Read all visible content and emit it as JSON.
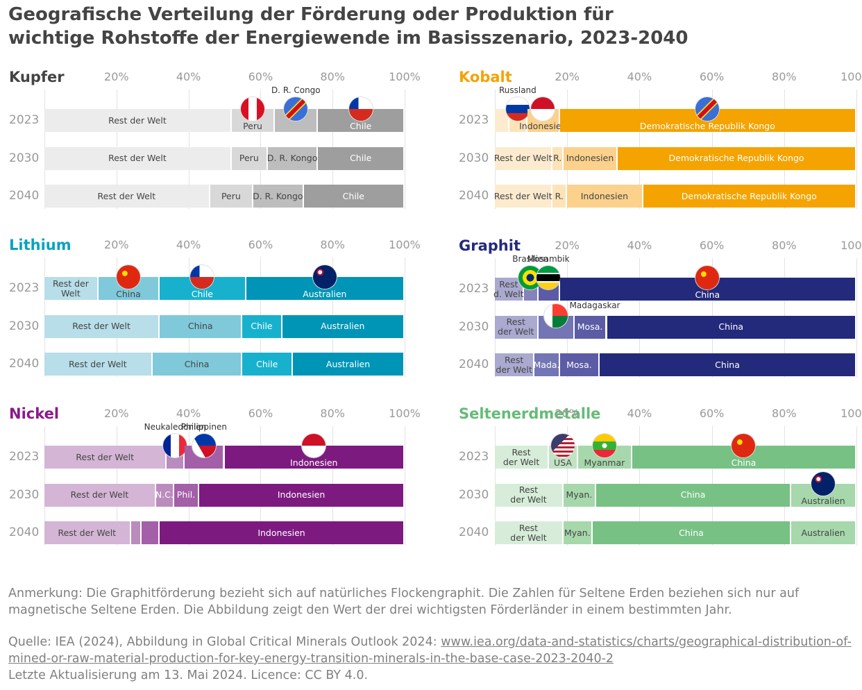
{
  "title": "Geografische Verteilung der Förderung oder Produktion für wichtige Rohstoffe der Energiewende im Basisszenario, 2023-2040",
  "chart_data": [
    {
      "type": "bar",
      "orientation": "horizontal",
      "stacked": true,
      "title": "Kupfer",
      "title_color": "#444444",
      "categories": [
        "2023",
        "2030",
        "2040"
      ],
      "xlim": [
        0,
        100
      ],
      "xticks": [
        {
          "value": 20,
          "label": "20%"
        },
        {
          "value": 40,
          "label": "40%"
        },
        {
          "value": 60,
          "label": "60%"
        },
        {
          "value": 80,
          "label": "80%"
        },
        {
          "value": 100,
          "label": "100%"
        }
      ],
      "series": [
        {
          "color": "#ececec",
          "values": [
            52,
            52,
            46
          ],
          "labels": [
            "Rest der Welt",
            "Rest der Welt",
            "Rest der Welt"
          ]
        },
        {
          "color": "#d8d8d8",
          "values": [
            12,
            10,
            12
          ],
          "labels": [
            "Peru",
            "Peru",
            "Peru"
          ]
        },
        {
          "name": "D. R. Congo",
          "color": "#bdbdbd",
          "values": [
            12,
            14,
            14
          ],
          "labels": [
            null,
            "D. R. Kongo",
            "D. R. Kongo"
          ]
        },
        {
          "color": "#9e9e9e",
          "values": [
            24,
            24,
            28
          ],
          "labels": [
            "Chile",
            "Chile",
            "Chile"
          ]
        }
      ]
    },
    {
      "type": "bar",
      "orientation": "horizontal",
      "stacked": true,
      "title": "Kobalt",
      "title_color": "#f5a300",
      "categories": [
        "2023",
        "2030",
        "2040"
      ],
      "xlim": [
        0,
        100
      ],
      "xticks": [
        {
          "value": 20,
          "label": "20%"
        },
        {
          "value": 40,
          "label": "40%"
        },
        {
          "value": 60,
          "label": "60%"
        },
        {
          "value": 80,
          "label": "80%"
        },
        {
          "value": 100,
          "label": "100%"
        }
      ],
      "series": [
        {
          "color": "#fdebcf",
          "values": [
            4,
            16,
            16
          ],
          "labels": [
            null,
            "Rest der Welt",
            "Rest der Welt"
          ]
        },
        {
          "name": "Russland",
          "color": "#fde3b8",
          "values": [
            5,
            3,
            4
          ],
          "labels": [
            null,
            "R.",
            "R."
          ]
        },
        {
          "color": "#fbd18c",
          "values": [
            9,
            15,
            21
          ],
          "labels": [
            "Indonesien",
            "Indonesien",
            "Indonesien"
          ]
        },
        {
          "color": "#f5a300",
          "values": [
            82,
            66,
            59
          ],
          "labels": [
            "Demokratische Republik Kongo",
            "Demokratische Republik Kongo",
            "Demokratische Republik Kongo"
          ]
        }
      ]
    },
    {
      "type": "bar",
      "orientation": "horizontal",
      "stacked": true,
      "title": "Lithium",
      "title_color": "#0aa2c0",
      "categories": [
        "2023",
        "2030",
        "2040"
      ],
      "xlim": [
        0,
        100
      ],
      "xticks": [
        {
          "value": 20,
          "label": "20%"
        },
        {
          "value": 40,
          "label": "40%"
        },
        {
          "value": 60,
          "label": "60%"
        },
        {
          "value": 80,
          "label": "80%"
        },
        {
          "value": 100,
          "label": "100%"
        }
      ],
      "series": [
        {
          "color": "#b7dee9",
          "values": [
            15,
            32,
            30
          ],
          "labels": [
            "Rest der\nWelt",
            "Rest der Welt",
            "Rest der Welt"
          ]
        },
        {
          "color": "#7fc9db",
          "values": [
            17,
            23,
            25
          ],
          "labels": [
            "China",
            "China",
            "China"
          ]
        },
        {
          "color": "#17b1cd",
          "values": [
            24,
            11,
            14
          ],
          "labels": [
            "Chile",
            "Chile",
            "Chile"
          ]
        },
        {
          "color": "#0095b6",
          "values": [
            44,
            34,
            31
          ],
          "labels": [
            "Australien",
            "Australien",
            "Australien"
          ]
        }
      ]
    },
    {
      "type": "bar",
      "orientation": "horizontal",
      "stacked": true,
      "title": "Graphit",
      "title_color": "#232a7b",
      "categories": [
        "2023",
        "2030",
        "2040"
      ],
      "xlim": [
        0,
        100
      ],
      "xticks": [
        {
          "value": 20,
          "label": "20%"
        },
        {
          "value": 40,
          "label": "40%"
        },
        {
          "value": 60,
          "label": "60%"
        },
        {
          "value": 80,
          "label": "80%"
        },
        {
          "value": 100,
          "label": "100%"
        }
      ],
      "series": [
        {
          "color": "#aaa9d0",
          "values": [
            8,
            12,
            11
          ],
          "labels": [
            "Rest\nd. Welt",
            "Rest\nder Welt",
            "Rest\nder Welt"
          ]
        },
        {
          "name": "Brasilien",
          "color": "#8483bc",
          "values": [
            4,
            null,
            null
          ]
        },
        {
          "name": "Madagaskar",
          "color": "#7475b4",
          "values": [
            null,
            10,
            7
          ],
          "labels": [
            null,
            null,
            "Mada."
          ]
        },
        {
          "name": "Mosambik",
          "color": "#5b5ba6",
          "values": [
            6,
            9,
            11
          ],
          "labels": [
            null,
            "Mosa.",
            "Mosa."
          ]
        },
        {
          "color": "#232a7b",
          "values": [
            82,
            69,
            71
          ],
          "labels": [
            "China",
            "China",
            "China"
          ]
        }
      ]
    },
    {
      "type": "bar",
      "orientation": "horizontal",
      "stacked": true,
      "title": "Nickel",
      "title_color": "#8a1a8a",
      "categories": [
        "2023",
        "2030",
        "2040"
      ],
      "xlim": [
        0,
        100
      ],
      "xticks": [
        {
          "value": 20,
          "label": "20%"
        },
        {
          "value": 40,
          "label": "40%"
        },
        {
          "value": 60,
          "label": "60%"
        },
        {
          "value": 80,
          "label": "80%"
        },
        {
          "value": 100,
          "label": "100%"
        }
      ],
      "series": [
        {
          "color": "#d4b5d6",
          "values": [
            34,
            31,
            24
          ],
          "labels": [
            "Rest der Welt",
            "Rest der Welt",
            "Rest der Welt"
          ]
        },
        {
          "name": "Neukaledonien",
          "color": "#ba8cbe",
          "values": [
            5,
            5,
            3
          ],
          "labels": [
            null,
            "N.C.",
            null
          ]
        },
        {
          "name": "Philippinen",
          "color": "#a35fa7",
          "values": [
            11,
            7,
            5
          ],
          "labels": [
            null,
            "Phil.",
            null
          ]
        },
        {
          "color": "#7d1a80",
          "values": [
            50,
            57,
            68
          ],
          "labels": [
            "Indonesien",
            "Indonesien",
            "Indonesien"
          ]
        }
      ]
    },
    {
      "type": "bar",
      "orientation": "horizontal",
      "stacked": true,
      "title": "Seltenerdmetalle",
      "title_color": "#66bb77",
      "categories": [
        "2023",
        "2030",
        "2040"
      ],
      "xlim": [
        0,
        100
      ],
      "xticks": [
        {
          "value": 20,
          "label": "20%"
        },
        {
          "value": 40,
          "label": "40%"
        },
        {
          "value": 60,
          "label": "60%"
        },
        {
          "value": 80,
          "label": "80%"
        },
        {
          "value": 100,
          "label": "100%"
        }
      ],
      "series": [
        {
          "color": "#d7edd9",
          "values": [
            15,
            19,
            19
          ],
          "labels": [
            "Rest\nder Welt",
            "Rest\nder Welt",
            "Rest\nder Welt"
          ]
        },
        {
          "color": "#c1e3c4",
          "values": [
            8,
            null,
            null
          ],
          "labels": [
            "USA",
            null,
            null
          ]
        },
        {
          "color": "#a6d8ab",
          "values": [
            15,
            9,
            8
          ],
          "labels": [
            "Myanmar",
            "Myan.",
            "Myan."
          ]
        },
        {
          "color": "#77c184",
          "values": [
            62,
            54,
            55
          ],
          "labels": [
            "China",
            "China",
            "China"
          ]
        },
        {
          "color": "#a6d8ab",
          "values": [
            null,
            18,
            18
          ],
          "labels": [
            null,
            "Australien",
            "Australien"
          ]
        }
      ]
    }
  ],
  "note": "Anmerkung: Die Graphitförderung bezieht sich auf natürliches Flockengraphit. Die Zahlen für Seltene Erden beziehen sich nur auf magnetische Seltene Erden. Die Abbildung zeigt den Wert der drei wichtigsten Förderländer in einem bestimmten Jahr.",
  "source": {
    "prefix": "Quelle: IEA (2024), Abbildung in Global Critical Minerals Outlook 2024: ",
    "link": "www.iea.org/data-and-statistics/charts/geographical-distribution-of-mined-or-raw-material-production-for-key-energy-transition-minerals-in-the-base-case-2023-2040-2",
    "updated": "Letzte Aktualisierung am 13. Mai 2024. Licence: CC BY 4.0."
  }
}
